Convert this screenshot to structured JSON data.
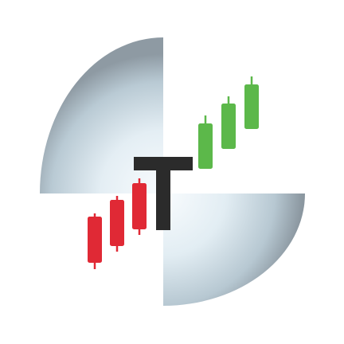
{
  "logo": {
    "letter": "T",
    "colors": {
      "letter": "#2b2b2b",
      "bearish": "#e02935",
      "bullish": "#5cb84a",
      "disc_light": "#f7fbfd",
      "disc_mid": "#cfdfe8",
      "disc_dark": "#8e9aa3"
    },
    "candles": [
      {
        "kind": "bearish",
        "level": 1
      },
      {
        "kind": "bearish",
        "level": 2
      },
      {
        "kind": "bearish",
        "level": 3
      },
      {
        "kind": "bullish",
        "level": 4
      },
      {
        "kind": "bullish",
        "level": 5
      },
      {
        "kind": "bullish",
        "level": 6
      }
    ]
  }
}
